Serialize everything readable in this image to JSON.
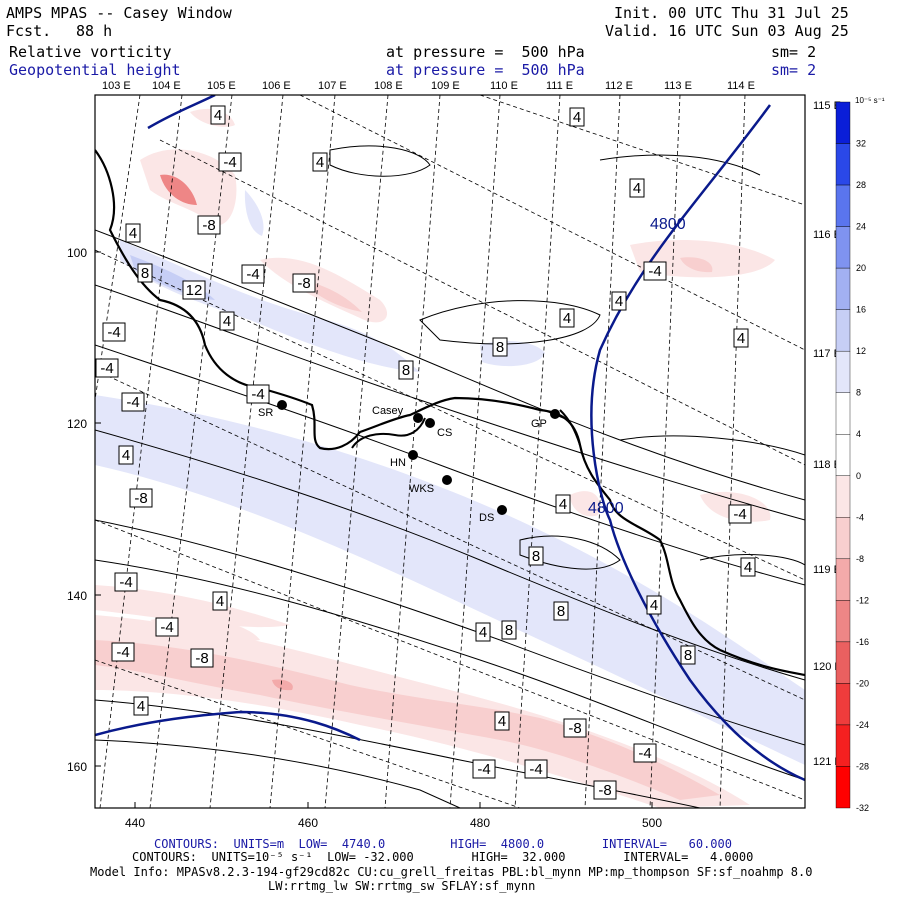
{
  "header": {
    "title": "AMPS MPAS -- Casey Window",
    "fcst_label": "Fcst.",
    "fcst_value": "88 h",
    "init": "Init. 00 UTC Thu 31 Jul 25",
    "valid": "Valid. 16 UTC Sun 03 Aug 25",
    "field1": {
      "name": "Relative vorticity",
      "pressure": "at pressure =  500 hPa",
      "sm": "sm= 2"
    },
    "field2": {
      "name": "Geopotential height",
      "pressure": "at pressure =  500 hPa",
      "sm": "sm= 2"
    }
  },
  "map": {
    "lon_labels_top": [
      "103 E",
      "104 E",
      "105 E",
      "106 E",
      "107 E",
      "108 E",
      "109 E",
      "110 E",
      "111 E",
      "112 E",
      "113 E",
      "114 E"
    ],
    "lon_labels_right": [
      "115 E",
      "116 E",
      "117 E",
      "118 E",
      "119 E",
      "120 E",
      "121 E"
    ],
    "y_ticks": [
      "100",
      "120",
      "140",
      "160"
    ],
    "x_ticks": [
      "440",
      "460",
      "480",
      "500"
    ],
    "stations": [
      {
        "id": "SR",
        "label": "SR"
      },
      {
        "id": "Casey",
        "label": "Casey"
      },
      {
        "id": "CS",
        "label": "CS"
      },
      {
        "id": "HN",
        "label": "HN"
      },
      {
        "id": "WKS",
        "label": "WKS"
      },
      {
        "id": "DS",
        "label": "DS"
      },
      {
        "id": "GP",
        "label": "GP"
      }
    ],
    "height_labels": [
      "4800",
      "4800"
    ],
    "vort_labels": [
      "4",
      "-4",
      "4",
      "4",
      "4",
      "-8",
      "4",
      "-4",
      "-8",
      "8",
      "12",
      "4",
      "-4",
      "4",
      "8",
      "4",
      "8",
      "-4",
      "-4",
      "-4",
      "4",
      "-8",
      "8",
      "4",
      "-4",
      "4",
      "8",
      "4",
      "-4",
      "8",
      "4",
      "8",
      "-4",
      "-4",
      "-8",
      "4",
      "-8",
      "4",
      "-4",
      "-4",
      "-4",
      "-8",
      "-4",
      "4",
      "4",
      "-4"
    ]
  },
  "colorbar": {
    "units": "10⁻⁵ s⁻¹",
    "ticks": [
      "32",
      "28",
      "24",
      "20",
      "16",
      "12",
      "8",
      "4",
      "0",
      "-4",
      "-8",
      "-12",
      "-16",
      "-20",
      "-24",
      "-28",
      "-32"
    ],
    "colors": [
      "#0a1ed8",
      "#2a48e8",
      "#5a75ee",
      "#7f93f0",
      "#a2b0f2",
      "#c6cef5",
      "#e3e6fa",
      "#ffffff",
      "#ffffff",
      "#fbe6e6",
      "#f8cfcf",
      "#f3aaaa",
      "#ee8686",
      "#ea6060",
      "#ef3c3c",
      "#f52020",
      "#ff0000"
    ]
  },
  "footer": {
    "contours1": "CONTOURS:  UNITS=m  LOW=  4740.0         HIGH=  4800.0        INTERVAL=   60.000",
    "contours2": "CONTOURS:  UNITS=10⁻⁵ s⁻¹  LOW= -32.000        HIGH=  32.000        INTERVAL=   4.0000",
    "model1": "Model Info: MPASv8.2.3-194-gf29cd82c CU:cu_grell_freitas PBL:bl_mynn MP:mp_thompson SF:sf_noahmp 8.0",
    "model2": "LW:rrtmg_lw SW:rrtmg_sw SFLAY:sf_mynn"
  },
  "colors": {
    "height_contour": "#0a1a8c",
    "text_blue": "#1a1aa6",
    "coast": "#000000"
  }
}
